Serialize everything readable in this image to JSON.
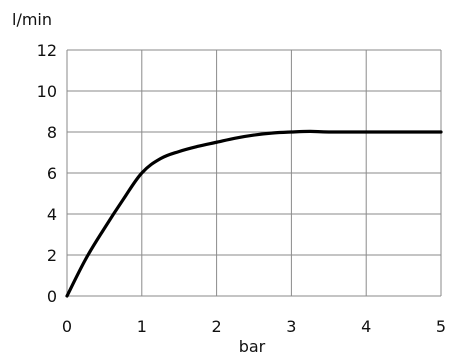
{
  "chart_data": {
    "type": "line",
    "title": "",
    "xlabel": "bar",
    "ylabel": "l/min",
    "xlim": [
      0,
      5
    ],
    "ylim": [
      0,
      12
    ],
    "x_ticks": [
      0,
      1,
      2,
      3,
      4,
      5
    ],
    "y_ticks": [
      0,
      2,
      4,
      6,
      8,
      10,
      12
    ],
    "grid": true,
    "legend": "none",
    "series": [
      {
        "x": [
          0,
          0.25,
          0.5,
          0.75,
          1.0,
          1.25,
          1.5,
          1.75,
          2.0,
          2.25,
          2.5,
          2.75,
          3.0,
          3.25,
          3.5,
          4.0,
          4.5,
          5.0
        ],
        "y": [
          0,
          1.8,
          3.3,
          4.7,
          6.0,
          6.7,
          7.05,
          7.3,
          7.5,
          7.7,
          7.85,
          7.95,
          8.0,
          8.03,
          8.0,
          8.0,
          8.0,
          8.0
        ],
        "color": "#000000"
      }
    ]
  }
}
